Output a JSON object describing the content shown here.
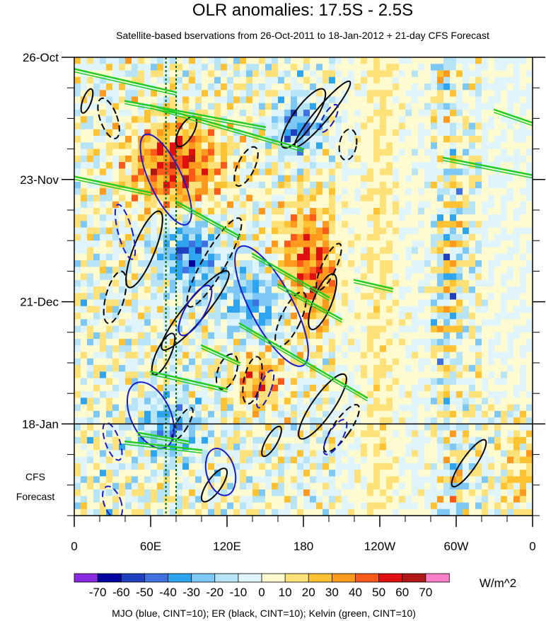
{
  "chart_data": {
    "type": "heatmap",
    "title": "OLR anomalies: 17.5S - 2.5S",
    "subtitle": "Satellite-based bservations from 26-Oct-2011 to 18-Jan-2012 + 21-day CFS Forecast",
    "x_ticks": [
      "0",
      "60E",
      "120E",
      "180",
      "120W",
      "60W",
      "0"
    ],
    "x_tick_values": [
      0,
      60,
      120,
      180,
      240,
      300,
      360
    ],
    "xlim": [
      0,
      360
    ],
    "y_ticks": [
      "26-Oct",
      "23-Nov",
      "21-Dec",
      "18-Jan"
    ],
    "y_tick_days": [
      0,
      28,
      56,
      84
    ],
    "ylim_days": [
      0,
      105
    ],
    "forecast_start_day": 84,
    "forecast_label": [
      "CFS",
      "Forecast"
    ],
    "reference_lines_lon": [
      72,
      80
    ],
    "colorbar": {
      "labels": [
        "-70",
        "-60",
        "-50",
        "-40",
        "-30",
        "-20",
        "-10",
        "0",
        "10",
        "20",
        "30",
        "40",
        "50",
        "60",
        "70"
      ],
      "colors": [
        "#8a2be2",
        "#0000a0",
        "#1f3fbf",
        "#3f72e0",
        "#2fa5f0",
        "#7ec8f5",
        "#b8e4f8",
        "#dff4fb",
        "#fffbd0",
        "#ffe17a",
        "#ffc233",
        "#ff9a1f",
        "#ff5a1a",
        "#e01010",
        "#b01818",
        "#ff7fc8"
      ],
      "units": "W/m^2"
    },
    "contour_legend": "MJO (blue, CINT=10); ER (black, CINT=10); Kelvin (green, CINT=10)",
    "colors": {
      "mjo": "#1a1acc",
      "er": "#000000",
      "kelvin": "#22cc22",
      "ref": "#006400"
    }
  }
}
